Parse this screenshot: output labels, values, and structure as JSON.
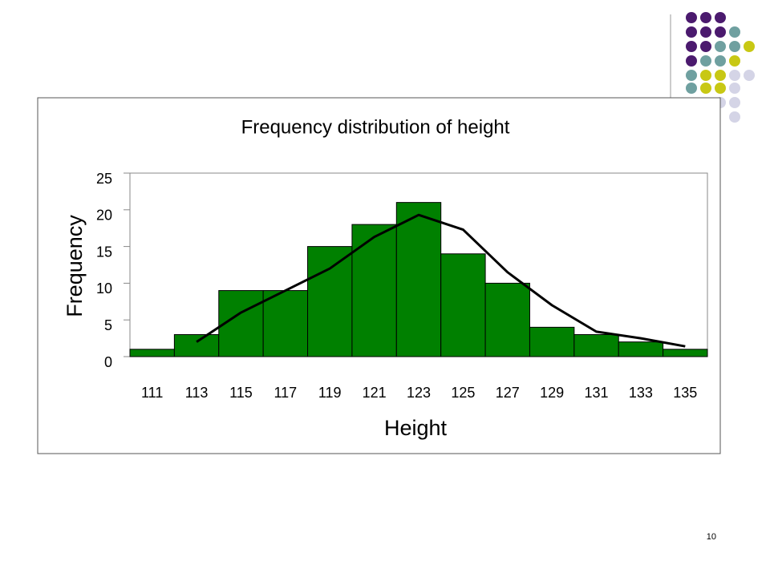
{
  "chart_data": {
    "type": "bar",
    "title": "Frequency distribution of height",
    "x_label": "Height",
    "y_label": "Frequency",
    "categories": [
      "111",
      "113",
      "115",
      "117",
      "119",
      "121",
      "123",
      "125",
      "127",
      "129",
      "131",
      "133",
      "135"
    ],
    "series": [
      {
        "type": "bar",
        "color": "#008000",
        "values": [
          1,
          3,
          9,
          9,
          15,
          18,
          21,
          14,
          10,
          4,
          3,
          2,
          1
        ]
      },
      {
        "type": "line",
        "color": "#000000",
        "values": [
          null,
          2,
          6,
          9,
          12,
          16.3,
          19.3,
          17.3,
          11.5,
          7,
          3.4,
          2.5,
          1.4
        ]
      }
    ],
    "ylim": [
      0,
      25
    ],
    "yticks": [
      0,
      5,
      10,
      15,
      20,
      25
    ],
    "grid": false
  },
  "slide_number": "10"
}
